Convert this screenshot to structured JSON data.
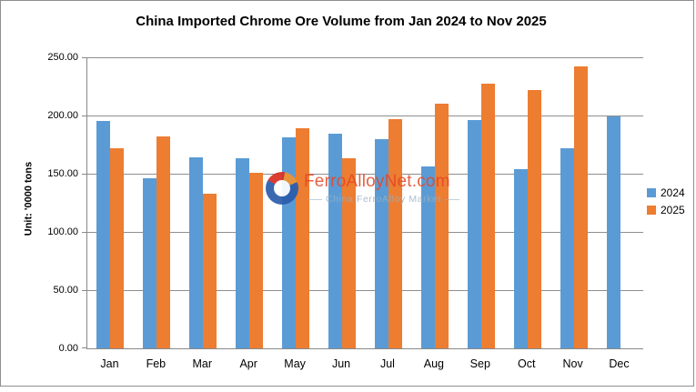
{
  "chart": {
    "title": "China Imported Chrome Ore Volume from Jan 2024 to Nov 2025",
    "y_axis_title": "Unit: '0000 tons"
  },
  "chart_data": {
    "type": "bar",
    "title": "China Imported Chrome Ore Volume from Jan 2024 to Nov 2025",
    "xlabel": "",
    "ylabel": "Unit: '0000 tons",
    "categories": [
      "Jan",
      "Feb",
      "Mar",
      "Apr",
      "May",
      "Jun",
      "Jul",
      "Aug",
      "Sep",
      "Oct",
      "Nov",
      "Dec"
    ],
    "series": [
      {
        "name": "2024",
        "color": "#5B9BD5",
        "values": [
          195,
          146,
          164,
          163,
          181,
          184,
          180,
          156,
          196,
          154,
          172,
          199
        ]
      },
      {
        "name": "2025",
        "color": "#ED7D31",
        "values": [
          172,
          182,
          133,
          151,
          189,
          163,
          197,
          210,
          227,
          222,
          242,
          null
        ]
      }
    ],
    "ylim": [
      0,
      250
    ],
    "y_ticks": [
      "0.00",
      "50.00",
      "100.00",
      "150.00",
      "200.00",
      "250.00"
    ],
    "grid": "horizontal",
    "legend_position": "right",
    "bar_colors": {
      "2024": "#5B9BD5",
      "2025": "#ED7D31"
    }
  },
  "legend": {
    "items": [
      {
        "label": "2024",
        "color": "#5B9BD5"
      },
      {
        "label": "2025",
        "color": "#ED7D31"
      }
    ]
  },
  "watermark": {
    "brand": "FerroAlloyNet.com",
    "tagline": "China FerroAlloy Market"
  }
}
